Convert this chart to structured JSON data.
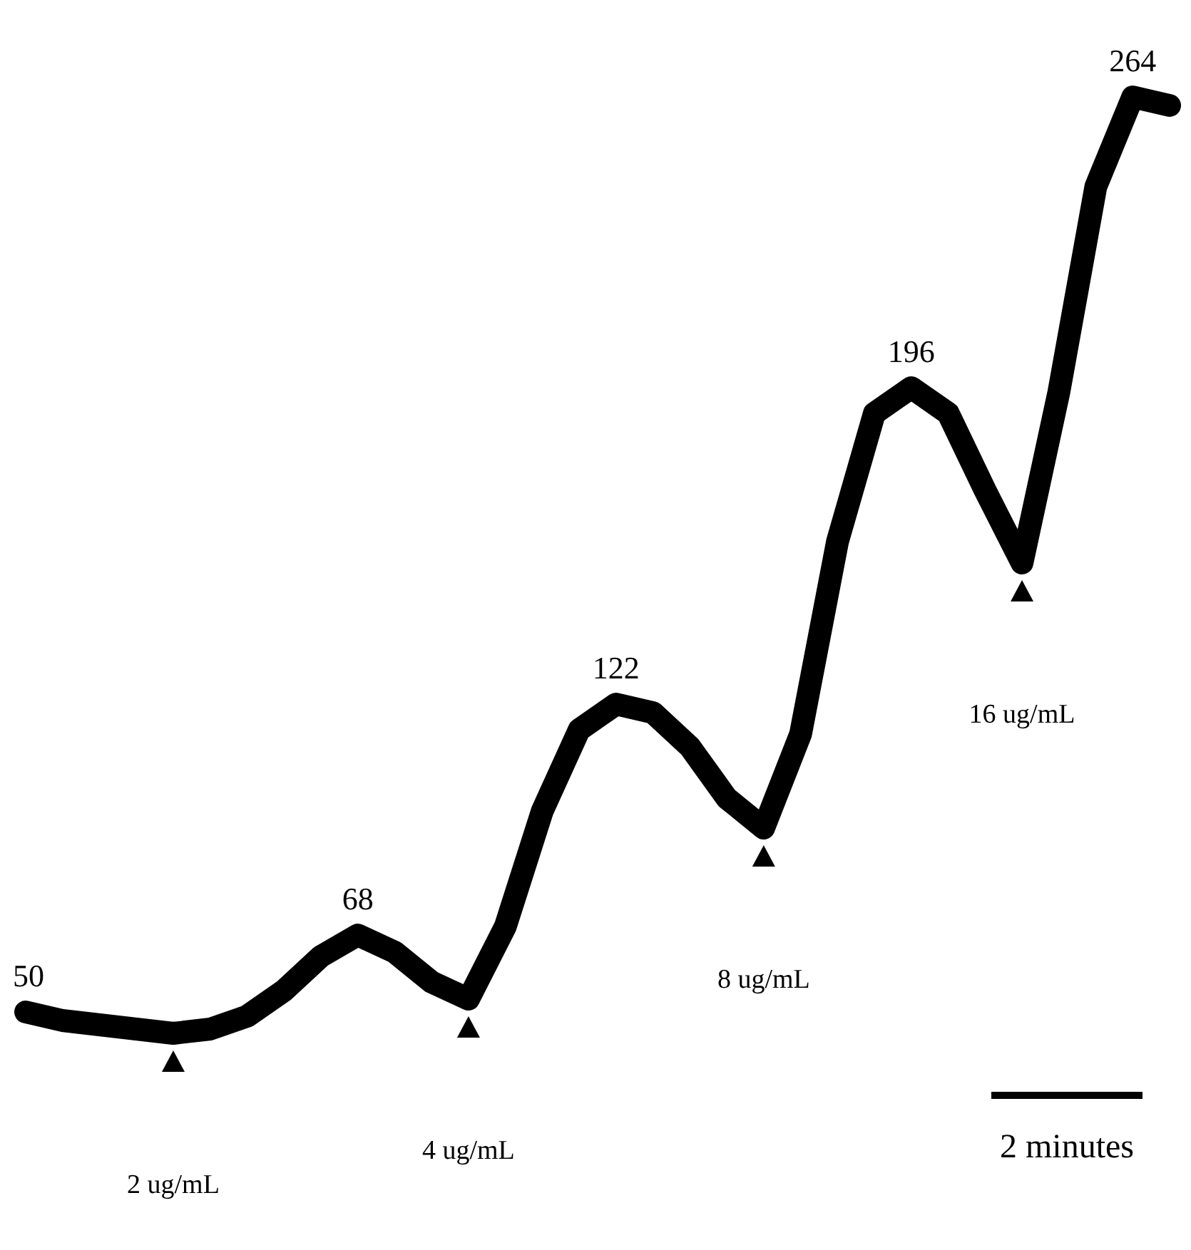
{
  "chart_data": {
    "type": "line",
    "tick_labels": false,
    "categories": [
      null,
      null,
      null,
      null,
      null,
      null,
      null,
      null,
      null,
      null,
      null,
      null,
      null,
      null,
      null,
      null,
      null,
      null,
      null,
      null,
      null,
      null,
      null,
      null,
      null,
      null,
      null,
      null,
      null,
      null,
      null,
      null
    ],
    "series": [
      {
        "color": "#000000",
        "values": [
          50,
          48,
          47,
          46,
          45,
          46,
          49,
          55,
          63,
          68,
          64,
          57,
          53,
          70,
          97,
          116,
          122,
          120,
          112,
          100,
          93,
          115,
          160,
          190,
          196,
          190,
          172,
          155,
          195,
          243,
          264,
          262
        ],
        "value_labels": [
          "50",
          null,
          null,
          null,
          null,
          null,
          null,
          null,
          null,
          "68",
          null,
          null,
          null,
          null,
          null,
          null,
          "122",
          null,
          null,
          null,
          null,
          null,
          null,
          null,
          "196",
          null,
          null,
          null,
          null,
          null,
          "264",
          null
        ]
      }
    ],
    "annotations": [
      "2 ug/mL",
      "4 ug/mL",
      "8 ug/mL",
      "16 ug/mL",
      "2 minutes"
    ]
  }
}
